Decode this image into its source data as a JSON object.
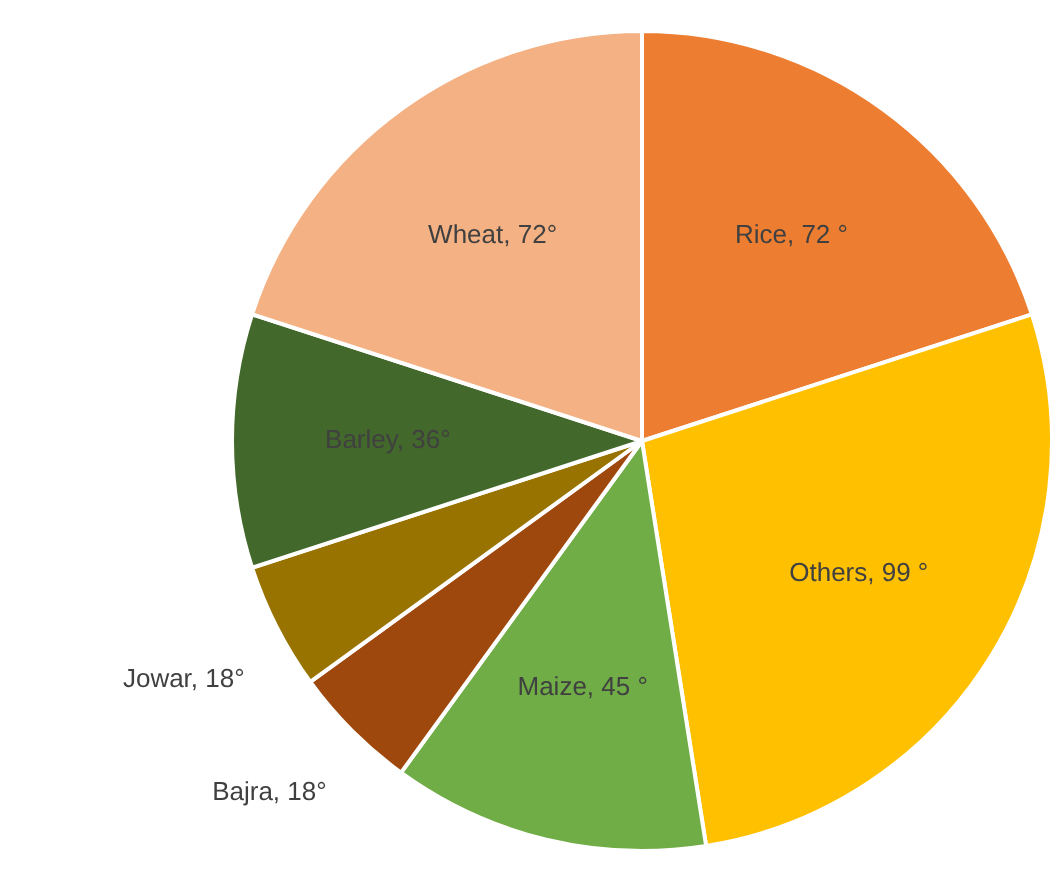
{
  "chart_data": {
    "type": "pie",
    "categories": [
      "Rice",
      "Others",
      "Maize",
      "Bajra",
      "Jowar",
      "Barley",
      "Wheat"
    ],
    "values": [
      72,
      99,
      45,
      18,
      18,
      36,
      72
    ],
    "value_labels": [
      "72 °",
      "99 °",
      "45 °",
      "18°",
      "18°",
      "36°",
      "72°"
    ],
    "colors": [
      "#ed7d31",
      "#ffc000",
      "#70ad47",
      "#9e480e",
      "#997300",
      "#43682b",
      "#f4b183"
    ],
    "legend": false
  }
}
